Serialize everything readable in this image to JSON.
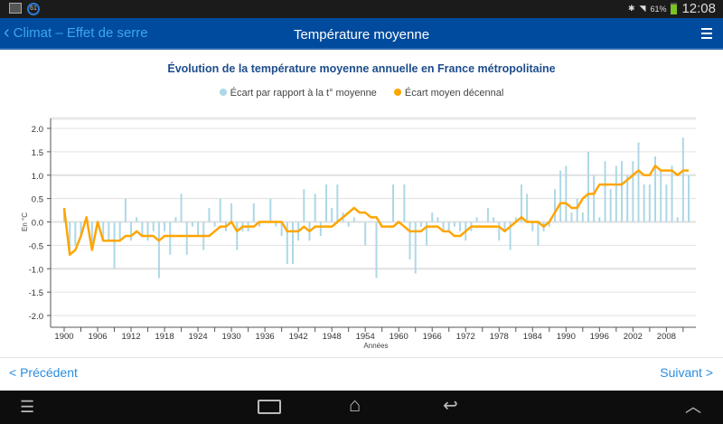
{
  "status_bar": {
    "notification_badge": "61",
    "battery": "61%",
    "time": "12:08"
  },
  "app_bar": {
    "back_label": "Climat – Effet de serre",
    "title": "Température moyenne"
  },
  "footer": {
    "prev": "< Précédent",
    "next": "Suivant >"
  },
  "chart_data": {
    "type": "bar+line",
    "title": "Évolution de la température moyenne annuelle en France métropolitaine",
    "xlabel": "Années",
    "ylabel": "En °C",
    "ylim": [
      -2.2,
      2.2
    ],
    "yticks": [
      "2.0",
      "1.5",
      "1.0",
      "0.5",
      "0.0",
      "-0.5",
      "-1.0",
      "-1.5",
      "-2.0"
    ],
    "xticks": [
      "1900",
      "1906",
      "1912",
      "1918",
      "1924",
      "1930",
      "1936",
      "1942",
      "1948",
      "1954",
      "1960",
      "1966",
      "1972",
      "1978",
      "1984",
      "1990",
      "1996",
      "2002",
      "2008"
    ],
    "x_start": 1900,
    "colors": {
      "bars": "#add8e6",
      "line": "#ffa500"
    },
    "series": [
      {
        "name": "Écart par rapport à la t° moyenne",
        "type": "bar",
        "values": [
          0.3,
          -0.7,
          -0.5,
          -0.3,
          0.1,
          -0.6,
          0.0,
          -0.4,
          -0.4,
          -1.0,
          -0.4,
          0.5,
          -0.4,
          0.1,
          -0.3,
          -0.4,
          -0.2,
          -1.2,
          -0.2,
          -0.7,
          0.1,
          0.6,
          -0.7,
          -0.1,
          -0.3,
          -0.6,
          0.3,
          -0.1,
          0.5,
          -0.2,
          0.4,
          -0.6,
          -0.2,
          -0.2,
          0.4,
          -0.1,
          0.0,
          0.5,
          -0.1,
          -0.3,
          -0.9,
          -0.9,
          -0.4,
          0.7,
          -0.4,
          0.6,
          -0.3,
          0.8,
          0.3,
          0.8,
          0.2,
          -0.1,
          0.1,
          0.0,
          -0.5,
          0.0,
          -1.2,
          0.0,
          0.0,
          0.8,
          0.0,
          0.8,
          -0.8,
          -1.1,
          -0.1,
          -0.5,
          0.2,
          0.1,
          -0.2,
          -0.2,
          -0.1,
          -0.2,
          -0.4,
          -0.2,
          0.1,
          0.0,
          0.3,
          0.1,
          -0.4,
          -0.2,
          -0.6,
          0.1,
          0.8,
          0.6,
          -0.2,
          -0.5,
          -0.2,
          -0.1,
          0.7,
          1.1,
          1.2,
          0.2,
          0.5,
          0.2,
          1.5,
          1.0,
          0.1,
          1.3,
          0.7,
          1.2,
          1.3,
          1.0,
          1.3,
          1.7,
          0.8,
          0.8,
          1.4,
          1.1,
          0.8,
          1.2,
          0.1,
          1.8,
          1.0
        ]
      },
      {
        "name": "Écart moyen décennal",
        "type": "line",
        "values": [
          0.3,
          -0.7,
          -0.6,
          -0.3,
          0.1,
          -0.6,
          0.0,
          -0.4,
          -0.4,
          -0.4,
          -0.4,
          -0.3,
          -0.3,
          -0.2,
          -0.3,
          -0.3,
          -0.3,
          -0.4,
          -0.3,
          -0.3,
          -0.3,
          -0.3,
          -0.3,
          -0.3,
          -0.3,
          -0.3,
          -0.3,
          -0.2,
          -0.1,
          -0.1,
          0.0,
          -0.2,
          -0.1,
          -0.1,
          -0.1,
          0.0,
          0.0,
          0.0,
          0.0,
          0.0,
          -0.2,
          -0.2,
          -0.2,
          -0.1,
          -0.2,
          -0.1,
          -0.1,
          -0.1,
          -0.1,
          0.0,
          0.1,
          0.2,
          0.3,
          0.2,
          0.2,
          0.1,
          0.1,
          -0.1,
          -0.1,
          -0.1,
          0.0,
          -0.1,
          -0.2,
          -0.2,
          -0.2,
          -0.1,
          -0.1,
          -0.1,
          -0.2,
          -0.2,
          -0.3,
          -0.3,
          -0.2,
          -0.1,
          -0.1,
          -0.1,
          -0.1,
          -0.1,
          -0.1,
          -0.2,
          -0.1,
          0.0,
          0.1,
          0.0,
          0.0,
          0.0,
          -0.1,
          0.0,
          0.2,
          0.4,
          0.4,
          0.3,
          0.3,
          0.5,
          0.6,
          0.6,
          0.8,
          0.8,
          0.8,
          0.8,
          0.8,
          0.9,
          1.0,
          1.1,
          1.0,
          1.0,
          1.2,
          1.1,
          1.1,
          1.1,
          1.0,
          1.1,
          1.1
        ]
      }
    ]
  }
}
